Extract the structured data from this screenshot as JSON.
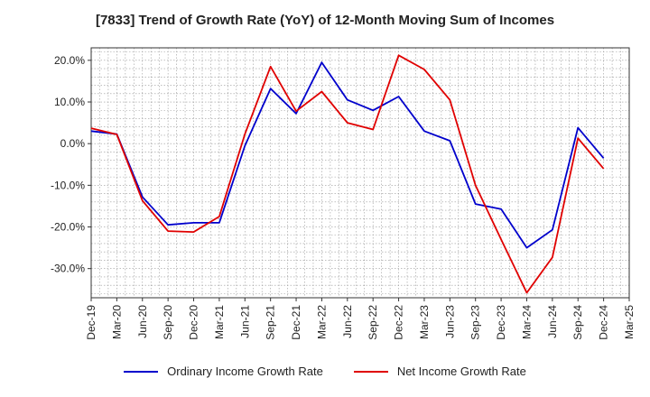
{
  "chart_data": {
    "type": "line",
    "title": "[7833]  Trend of Growth Rate (YoY) of 12-Month Moving Sum of Incomes",
    "xlabel": "",
    "ylabel": "",
    "ylim": [
      -37,
      23
    ],
    "grid": true,
    "legend_position": "bottom",
    "x": [
      "Dec-19",
      "Mar-20",
      "Jun-20",
      "Sep-20",
      "Dec-20",
      "Mar-21",
      "Jun-21",
      "Sep-21",
      "Dec-21",
      "Mar-22",
      "Jun-22",
      "Sep-22",
      "Dec-22",
      "Mar-23",
      "Jun-23",
      "Sep-23",
      "Dec-23",
      "Mar-24",
      "Jun-24",
      "Sep-24",
      "Dec-24",
      "Mar-25"
    ],
    "y_ticks": [
      20,
      10,
      0,
      -10,
      -20,
      -30
    ],
    "y_tick_labels": [
      "20.0%",
      "10.0%",
      "0.0%",
      "-10.0%",
      "-20.0%",
      "-30.0%"
    ],
    "series": [
      {
        "name": "Ordinary Income Growth Rate",
        "color": "#0000cc",
        "values": [
          3.0,
          2.3,
          -12.8,
          -19.5,
          -19.0,
          -19.0,
          -0.5,
          13.2,
          7.2,
          19.5,
          10.5,
          8.0,
          11.3,
          3.0,
          0.7,
          -14.5,
          -15.7,
          -25.0,
          -20.7,
          3.8,
          -3.5,
          null
        ]
      },
      {
        "name": "Net Income Growth Rate",
        "color": "#e00000",
        "values": [
          3.7,
          2.2,
          -13.7,
          -21.0,
          -21.2,
          -17.5,
          2.3,
          18.5,
          7.8,
          12.5,
          5.0,
          3.4,
          21.2,
          17.8,
          10.5,
          -10.0,
          -23.0,
          -35.8,
          -27.3,
          1.3,
          -6.0,
          null
        ]
      }
    ]
  }
}
